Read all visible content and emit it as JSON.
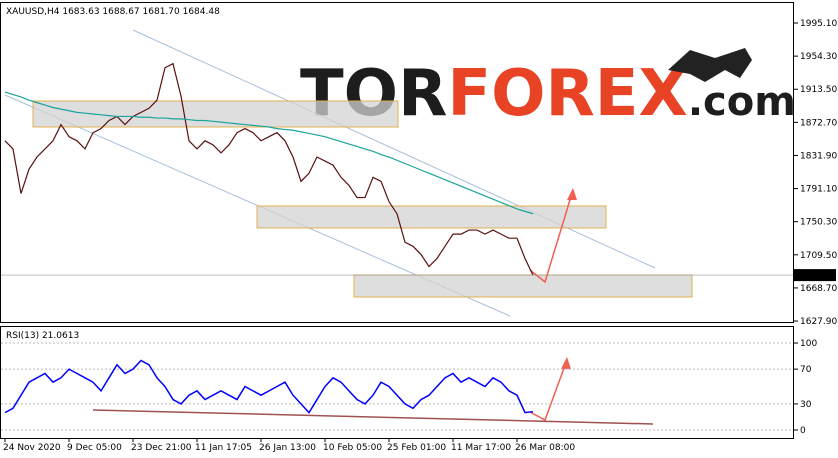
{
  "chart_data": [
    {
      "type": "line",
      "title": "XAUUSD,H4  1683.63 1688.67 1681.70 1684.48",
      "watermark": {
        "part1": "TOR",
        "part2": "FOREX",
        "part3": ".com"
      },
      "categories": [
        "24 Nov 2020",
        null,
        null,
        null,
        null,
        null,
        null,
        null,
        "9 Dec 05:00",
        null,
        null,
        null,
        null,
        null,
        null,
        null,
        "23 Dec 21:00",
        null,
        null,
        null,
        null,
        null,
        null,
        null,
        "11 Jan 17:05",
        null,
        null,
        null,
        null,
        null,
        null,
        null,
        "26 Jan 13:00",
        null,
        null,
        null,
        null,
        null,
        null,
        null,
        "10 Feb 05:00",
        null,
        null,
        null,
        null,
        null,
        null,
        null,
        "25 Feb 01:00",
        null,
        null,
        null,
        null,
        null,
        null,
        null,
        "11 Mar 17:00",
        null,
        null,
        null,
        null,
        null,
        null,
        null,
        "26 Mar 08:00",
        null,
        null
      ],
      "series": [
        {
          "color": "#5a1010",
          "values": [
            1850,
            1840,
            1785,
            1815,
            1830,
            1840,
            1850,
            1870,
            1855,
            1850,
            1840,
            1860,
            1865,
            1875,
            1880,
            1870,
            1880,
            1885,
            1890,
            1900,
            1940,
            1945,
            1905,
            1850,
            1840,
            1850,
            1845,
            1835,
            1845,
            1860,
            1865,
            1860,
            1850,
            1855,
            1860,
            1850,
            1830,
            1800,
            1810,
            1830,
            1825,
            1820,
            1805,
            1795,
            1780,
            1780,
            1805,
            1800,
            1775,
            1760,
            1725,
            1720,
            1710,
            1695,
            1705,
            1720,
            1735,
            1735,
            1740,
            1740,
            1735,
            1740,
            1735,
            1730,
            1730,
            1705,
            1684.48
          ]
        },
        {
          "color": "#1aa39a",
          "values": [
            1910,
            1907,
            1904,
            1900,
            1897,
            1894,
            1891,
            1889,
            1887,
            1885,
            1884,
            1883,
            1882,
            1881,
            1880,
            1880,
            1880,
            1879,
            1879,
            1878,
            1878,
            1877,
            1877,
            1876,
            1875,
            1875,
            1874,
            1873,
            1872,
            1871,
            1870,
            1869,
            1868,
            1867,
            1865,
            1864,
            1863,
            1861,
            1859,
            1857,
            1855,
            1852,
            1849,
            1846,
            1843,
            1840,
            1837,
            1833,
            1830,
            1826,
            1822,
            1818,
            1814,
            1810,
            1806,
            1802,
            1798,
            1794,
            1790,
            1786,
            1782,
            1778,
            1774,
            1770,
            1766,
            1763,
            1760
          ]
        }
      ],
      "ylim": [
        1626.7,
        2021.0
      ],
      "yticks": [
        {
          "value": 1995.1,
          "label": "1995.10"
        },
        {
          "value": 1954.3,
          "label": "1954.30"
        },
        {
          "value": 1913.5,
          "label": "1913.50"
        },
        {
          "value": 1872.7,
          "label": "1872.70"
        },
        {
          "value": 1831.9,
          "label": "1831.90"
        },
        {
          "value": 1791.1,
          "label": "1791.10"
        },
        {
          "value": 1750.3,
          "label": "1750.30"
        },
        {
          "value": 1709.5,
          "label": "1709.50"
        },
        {
          "value": 1668.7,
          "label": "1668.70"
        },
        {
          "value": 1627.9,
          "label": "1627.90"
        }
      ]
    },
    {
      "type": "line",
      "title": "RSI(13) 21.0613",
      "series": [
        {
          "color": "#0000ff",
          "values": [
            20,
            25,
            40,
            55,
            60,
            65,
            55,
            60,
            70,
            65,
            60,
            55,
            45,
            60,
            75,
            65,
            70,
            80,
            75,
            60,
            50,
            35,
            30,
            40,
            45,
            35,
            40,
            45,
            40,
            35,
            50,
            45,
            40,
            45,
            50,
            55,
            40,
            30,
            20,
            35,
            50,
            60,
            55,
            45,
            35,
            30,
            40,
            55,
            50,
            40,
            30,
            25,
            35,
            40,
            50,
            60,
            65,
            55,
            60,
            55,
            50,
            60,
            55,
            45,
            40,
            20,
            21.0613
          ]
        }
      ],
      "ylim": [
        -9.2,
        119.6
      ],
      "yticks": [
        100,
        70,
        30,
        0
      ],
      "grid": true
    }
  ]
}
